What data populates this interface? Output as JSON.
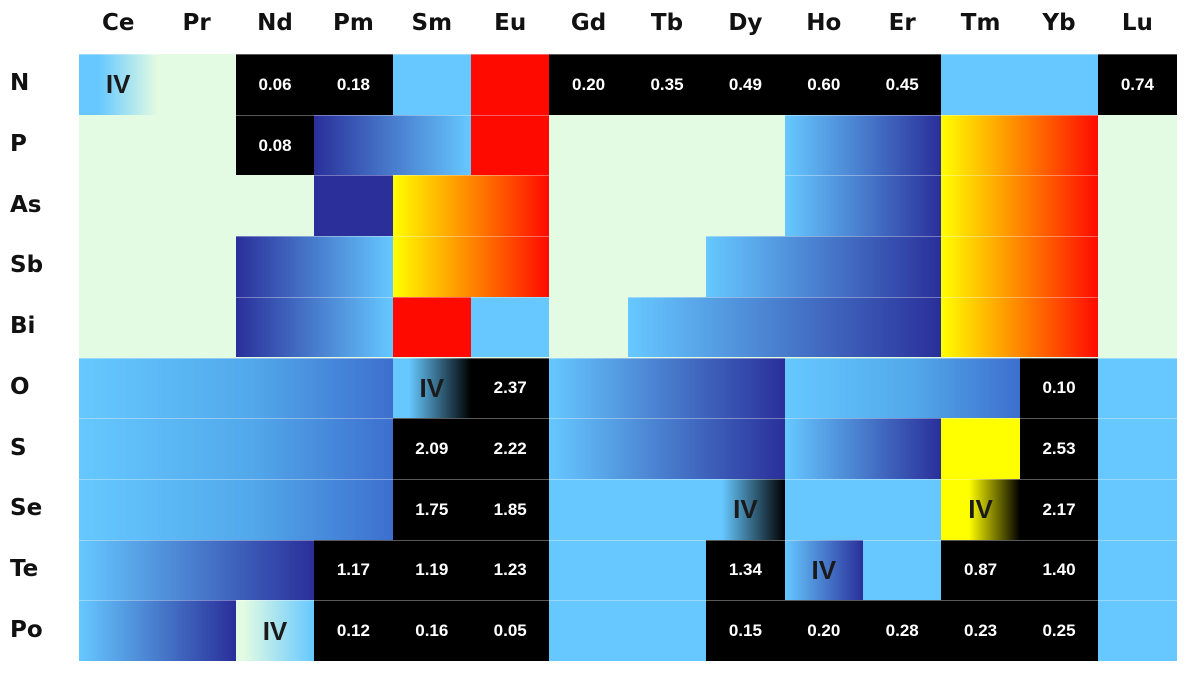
{
  "columns": [
    "Ce",
    "Pr",
    "Nd",
    "Pm",
    "Sm",
    "Eu",
    "Gd",
    "Tb",
    "Dy",
    "Ho",
    "Er",
    "Tm",
    "Yb",
    "Lu"
  ],
  "rows": [
    "N",
    "P",
    "As",
    "Sb",
    "Bi",
    "O",
    "S",
    "Se",
    "Te",
    "Po"
  ],
  "colors": {
    "background": "#e2fbe2",
    "light_blue": "#66c8ff",
    "dark_blue": "#2a2f9a",
    "black": "#000000",
    "red": "#ff0a00",
    "yellow": "#ffff00",
    "orange": "#ff7a00"
  },
  "cells": [
    {
      "r": 0,
      "c": 0,
      "span": 1,
      "fill": "lb2light",
      "text": "IV",
      "kind": "iv"
    },
    {
      "r": 0,
      "c": 2,
      "span": 1,
      "fill": "black",
      "text": "0.06",
      "kind": "num"
    },
    {
      "r": 0,
      "c": 3,
      "span": 1,
      "fill": "black",
      "text": "0.18",
      "kind": "num"
    },
    {
      "r": 0,
      "c": 4,
      "span": 1,
      "fill": "lightblue"
    },
    {
      "r": 0,
      "c": 5,
      "span": 1,
      "fill": "red"
    },
    {
      "r": 0,
      "c": 6,
      "span": 1,
      "fill": "black",
      "text": "0.20",
      "kind": "num"
    },
    {
      "r": 0,
      "c": 7,
      "span": 1,
      "fill": "black",
      "text": "0.35",
      "kind": "num"
    },
    {
      "r": 0,
      "c": 8,
      "span": 1,
      "fill": "black",
      "text": "0.49",
      "kind": "num"
    },
    {
      "r": 0,
      "c": 9,
      "span": 1,
      "fill": "black",
      "text": "0.60",
      "kind": "num"
    },
    {
      "r": 0,
      "c": 10,
      "span": 1,
      "fill": "black",
      "text": "0.45",
      "kind": "num"
    },
    {
      "r": 0,
      "c": 11,
      "span": 2,
      "fill": "lightblue"
    },
    {
      "r": 0,
      "c": 13,
      "span": 1,
      "fill": "black",
      "text": "0.74",
      "kind": "num"
    },
    {
      "r": 1,
      "c": 2,
      "span": 1,
      "fill": "black",
      "text": "0.08",
      "kind": "num"
    },
    {
      "r": 1,
      "c": 3,
      "span": 2,
      "fill": "db2lb"
    },
    {
      "r": 1,
      "c": 5,
      "span": 1,
      "fill": "red"
    },
    {
      "r": 1,
      "c": 9,
      "span": 2,
      "fill": "lb2db"
    },
    {
      "r": 1,
      "c": 11,
      "span": 2,
      "fill": "y2r"
    },
    {
      "r": 2,
      "c": 3,
      "span": 1,
      "fill": "darkblue"
    },
    {
      "r": 2,
      "c": 4,
      "span": 2,
      "fill": "y2r"
    },
    {
      "r": 2,
      "c": 9,
      "span": 2,
      "fill": "lb2db"
    },
    {
      "r": 2,
      "c": 11,
      "span": 2,
      "fill": "y2r"
    },
    {
      "r": 3,
      "c": 2,
      "span": 2,
      "fill": "db2lb"
    },
    {
      "r": 3,
      "c": 4,
      "span": 2,
      "fill": "y2r"
    },
    {
      "r": 3,
      "c": 8,
      "span": 3,
      "fill": "lb2db"
    },
    {
      "r": 3,
      "c": 11,
      "span": 2,
      "fill": "y2r"
    },
    {
      "r": 4,
      "c": 2,
      "span": 2,
      "fill": "db2lb"
    },
    {
      "r": 4,
      "c": 4,
      "span": 1,
      "fill": "red"
    },
    {
      "r": 4,
      "c": 5,
      "span": 1,
      "fill": "lightblue"
    },
    {
      "r": 4,
      "c": 7,
      "span": 4,
      "fill": "lb2db"
    },
    {
      "r": 4,
      "c": 11,
      "span": 2,
      "fill": "y2r"
    },
    {
      "r": 5,
      "c": 0,
      "span": 4,
      "fill": "lb2dbSoft"
    },
    {
      "r": 5,
      "c": 4,
      "span": 1,
      "fill": "lb2black",
      "text": "IV",
      "kind": "iv"
    },
    {
      "r": 5,
      "c": 5,
      "span": 1,
      "fill": "black",
      "text": "2.37",
      "kind": "num"
    },
    {
      "r": 5,
      "c": 6,
      "span": 3,
      "fill": "lb2db"
    },
    {
      "r": 5,
      "c": 9,
      "span": 3,
      "fill": "lb2dbSoft"
    },
    {
      "r": 5,
      "c": 12,
      "span": 1,
      "fill": "black",
      "text": "0.10",
      "kind": "num"
    },
    {
      "r": 5,
      "c": 13,
      "span": 1,
      "fill": "lightblue"
    },
    {
      "r": 6,
      "c": 0,
      "span": 4,
      "fill": "lb2dbSoft"
    },
    {
      "r": 6,
      "c": 4,
      "span": 1,
      "fill": "black",
      "text": "2.09",
      "kind": "num"
    },
    {
      "r": 6,
      "c": 5,
      "span": 1,
      "fill": "black",
      "text": "2.22",
      "kind": "num"
    },
    {
      "r": 6,
      "c": 6,
      "span": 3,
      "fill": "lb2db"
    },
    {
      "r": 6,
      "c": 9,
      "span": 2,
      "fill": "lb2db"
    },
    {
      "r": 6,
      "c": 11,
      "span": 1,
      "fill": "yellow"
    },
    {
      "r": 6,
      "c": 12,
      "span": 1,
      "fill": "black",
      "text": "2.53",
      "kind": "num"
    },
    {
      "r": 6,
      "c": 13,
      "span": 1,
      "fill": "lightblue"
    },
    {
      "r": 7,
      "c": 0,
      "span": 4,
      "fill": "lb2dbSoft"
    },
    {
      "r": 7,
      "c": 4,
      "span": 1,
      "fill": "black",
      "text": "1.75",
      "kind": "num"
    },
    {
      "r": 7,
      "c": 5,
      "span": 1,
      "fill": "black",
      "text": "1.85",
      "kind": "num"
    },
    {
      "r": 7,
      "c": 6,
      "span": 2,
      "fill": "lightblue"
    },
    {
      "r": 7,
      "c": 8,
      "span": 1,
      "fill": "lb2black",
      "text": "IV",
      "kind": "iv"
    },
    {
      "r": 7,
      "c": 9,
      "span": 2,
      "fill": "lightblue"
    },
    {
      "r": 7,
      "c": 11,
      "span": 1,
      "fill": "y2black",
      "text": "IV",
      "kind": "iv"
    },
    {
      "r": 7,
      "c": 12,
      "span": 1,
      "fill": "black",
      "text": "2.17",
      "kind": "num"
    },
    {
      "r": 7,
      "c": 13,
      "span": 1,
      "fill": "lightblue"
    },
    {
      "r": 8,
      "c": 0,
      "span": 3,
      "fill": "lb2db"
    },
    {
      "r": 8,
      "c": 3,
      "span": 1,
      "fill": "black",
      "text": "1.17",
      "kind": "num"
    },
    {
      "r": 8,
      "c": 4,
      "span": 1,
      "fill": "black",
      "text": "1.19",
      "kind": "num"
    },
    {
      "r": 8,
      "c": 5,
      "span": 1,
      "fill": "black",
      "text": "1.23",
      "kind": "num"
    },
    {
      "r": 8,
      "c": 6,
      "span": 2,
      "fill": "lightblue"
    },
    {
      "r": 8,
      "c": 8,
      "span": 1,
      "fill": "black",
      "text": "1.34",
      "kind": "num"
    },
    {
      "r": 8,
      "c": 9,
      "span": 1,
      "fill": "lb2db",
      "text": "IV",
      "kind": "iv"
    },
    {
      "r": 8,
      "c": 10,
      "span": 1,
      "fill": "lightblue"
    },
    {
      "r": 8,
      "c": 11,
      "span": 1,
      "fill": "black",
      "text": "0.87",
      "kind": "num"
    },
    {
      "r": 8,
      "c": 12,
      "span": 1,
      "fill": "black",
      "text": "1.40",
      "kind": "num"
    },
    {
      "r": 8,
      "c": 13,
      "span": 1,
      "fill": "lightblue"
    },
    {
      "r": 9,
      "c": 0,
      "span": 2,
      "fill": "lb2db"
    },
    {
      "r": 9,
      "c": 2,
      "span": 1,
      "fill": "light2lb",
      "text": "IV",
      "kind": "iv"
    },
    {
      "r": 9,
      "c": 3,
      "span": 1,
      "fill": "black",
      "text": "0.12",
      "kind": "num"
    },
    {
      "r": 9,
      "c": 4,
      "span": 1,
      "fill": "black",
      "text": "0.16",
      "kind": "num"
    },
    {
      "r": 9,
      "c": 5,
      "span": 1,
      "fill": "black",
      "text": "0.05",
      "kind": "num"
    },
    {
      "r": 9,
      "c": 6,
      "span": 2,
      "fill": "lightblue"
    },
    {
      "r": 9,
      "c": 8,
      "span": 1,
      "fill": "black",
      "text": "0.15",
      "kind": "num"
    },
    {
      "r": 9,
      "c": 9,
      "span": 1,
      "fill": "black",
      "text": "0.20",
      "kind": "num"
    },
    {
      "r": 9,
      "c": 10,
      "span": 1,
      "fill": "black",
      "text": "0.28",
      "kind": "num"
    },
    {
      "r": 9,
      "c": 11,
      "span": 1,
      "fill": "black",
      "text": "0.23",
      "kind": "num"
    },
    {
      "r": 9,
      "c": 12,
      "span": 1,
      "fill": "black",
      "text": "0.25",
      "kind": "num"
    },
    {
      "r": 9,
      "c": 13,
      "span": 1,
      "fill": "lightblue"
    }
  ]
}
